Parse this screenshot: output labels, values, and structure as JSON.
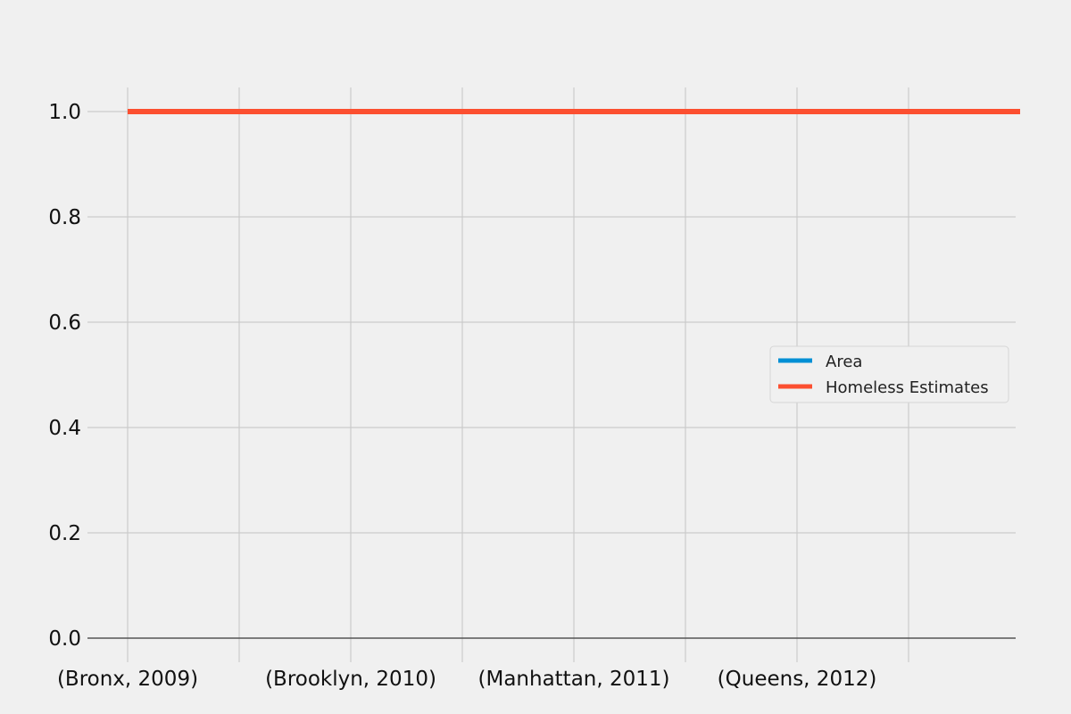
{
  "chart_data": {
    "type": "line",
    "title": "",
    "xlabel": "",
    "ylabel": "",
    "x_tick_labels": [
      "(Bronx, 2009)",
      "(Brooklyn, 2010)",
      "(Manhattan, 2011)",
      "(Queens, 2012)"
    ],
    "categories_count": 9,
    "y_tick_labels": [
      "0.0",
      "0.2",
      "0.4",
      "0.6",
      "0.8",
      "1.0"
    ],
    "y_ticks": [
      0.0,
      0.2,
      0.4,
      0.6,
      0.8,
      1.0
    ],
    "ylim": [
      -0.05,
      1.05
    ],
    "grid": true,
    "legend_position": "center-right",
    "series": [
      {
        "name": "Area",
        "color": "#008fd5",
        "values": [
          1,
          1,
          1,
          1,
          1,
          1,
          1,
          1,
          1
        ]
      },
      {
        "name": "Homeless Estimates",
        "color": "#fc4f30",
        "values": [
          1,
          1,
          1,
          1,
          1,
          1,
          1,
          1,
          1
        ]
      }
    ]
  }
}
